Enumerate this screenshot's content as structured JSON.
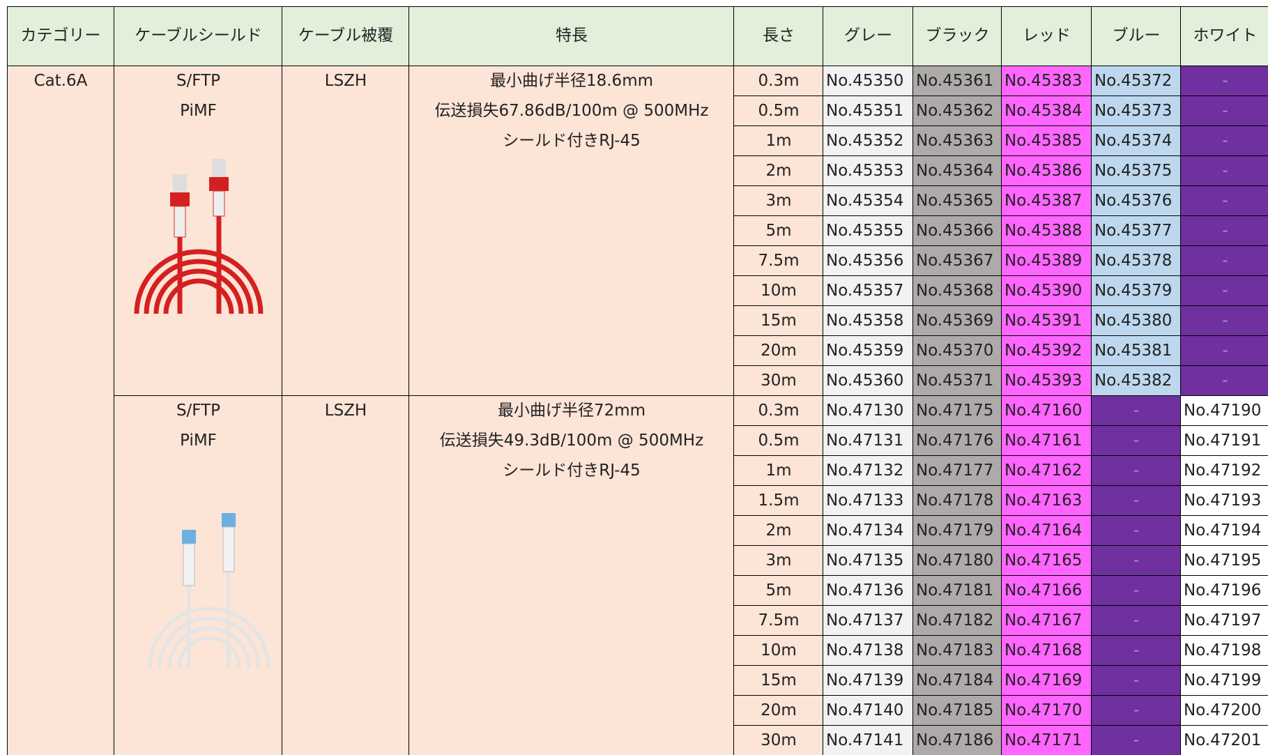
{
  "header": [
    "カテゴリー",
    "ケーブルシールド",
    "ケーブル被覆",
    "特長",
    "長さ",
    "グレー",
    "ブラック",
    "レッド",
    "ブルー",
    "ホワイト"
  ],
  "category": "Cat.6A",
  "groups": [
    {
      "shield": [
        "S/FTP",
        "PiMF"
      ],
      "jacket": "LSZH",
      "features": [
        "最小曲げ半径18.6mm",
        "伝送損失67.86dB/100m @ 500MHz",
        "シールド付きRJ-45"
      ],
      "rows": [
        [
          "0.3m",
          "No.45350",
          "No.45361",
          "No.45383",
          "No.45372",
          "-"
        ],
        [
          "0.5m",
          "No.45351",
          "No.45362",
          "No.45384",
          "No.45373",
          "-"
        ],
        [
          "1m",
          "No.45352",
          "No.45363",
          "No.45385",
          "No.45374",
          "-"
        ],
        [
          "2m",
          "No.45353",
          "No.45364",
          "No.45386",
          "No.45375",
          "-"
        ],
        [
          "3m",
          "No.45354",
          "No.45365",
          "No.45387",
          "No.45376",
          "-"
        ],
        [
          "5m",
          "No.45355",
          "No.45366",
          "No.45388",
          "No.45377",
          "-"
        ],
        [
          "7.5m",
          "No.45356",
          "No.45367",
          "No.45389",
          "No.45378",
          "-"
        ],
        [
          "10m",
          "No.45357",
          "No.45368",
          "No.45390",
          "No.45379",
          "-"
        ],
        [
          "15m",
          "No.45358",
          "No.45369",
          "No.45391",
          "No.45380",
          "-"
        ],
        [
          "20m",
          "No.45359",
          "No.45370",
          "No.45392",
          "No.45381",
          "-"
        ],
        [
          "30m",
          "No.45360",
          "No.45371",
          "No.45393",
          "No.45382",
          "-"
        ]
      ]
    },
    {
      "shield": [
        "S/FTP",
        "PiMF"
      ],
      "jacket": "LSZH",
      "features": [
        "最小曲げ半径72mm",
        "伝送損失49.3dB/100m @ 500MHz",
        "シールド付きRJ-45"
      ],
      "rows": [
        [
          "0.3m",
          "No.47130",
          "No.47175",
          "No.47160",
          "-",
          "No.47190"
        ],
        [
          "0.5m",
          "No.47131",
          "No.47176",
          "No.47161",
          "-",
          "No.47191"
        ],
        [
          "1m",
          "No.47132",
          "No.47177",
          "No.47162",
          "-",
          "No.47192"
        ],
        [
          "1.5m",
          "No.47133",
          "No.47178",
          "No.47163",
          "-",
          "No.47193"
        ],
        [
          "2m",
          "No.47134",
          "No.47179",
          "No.47164",
          "-",
          "No.47194"
        ],
        [
          "3m",
          "No.47135",
          "No.47180",
          "No.47165",
          "-",
          "No.47195"
        ],
        [
          "5m",
          "No.47136",
          "No.47181",
          "No.47166",
          "-",
          "No.47196"
        ],
        [
          "7.5m",
          "No.47137",
          "No.47182",
          "No.47167",
          "-",
          "No.47197"
        ],
        [
          "10m",
          "No.47138",
          "No.47183",
          "No.47168",
          "-",
          "No.47198"
        ],
        [
          "15m",
          "No.47139",
          "No.47184",
          "No.47169",
          "-",
          "No.47199"
        ],
        [
          "20m",
          "No.47140",
          "No.47185",
          "No.47170",
          "-",
          "No.47200"
        ],
        [
          "30m",
          "No.47141",
          "No.47186",
          "No.47171",
          "-",
          "No.47201"
        ]
      ]
    }
  ]
}
